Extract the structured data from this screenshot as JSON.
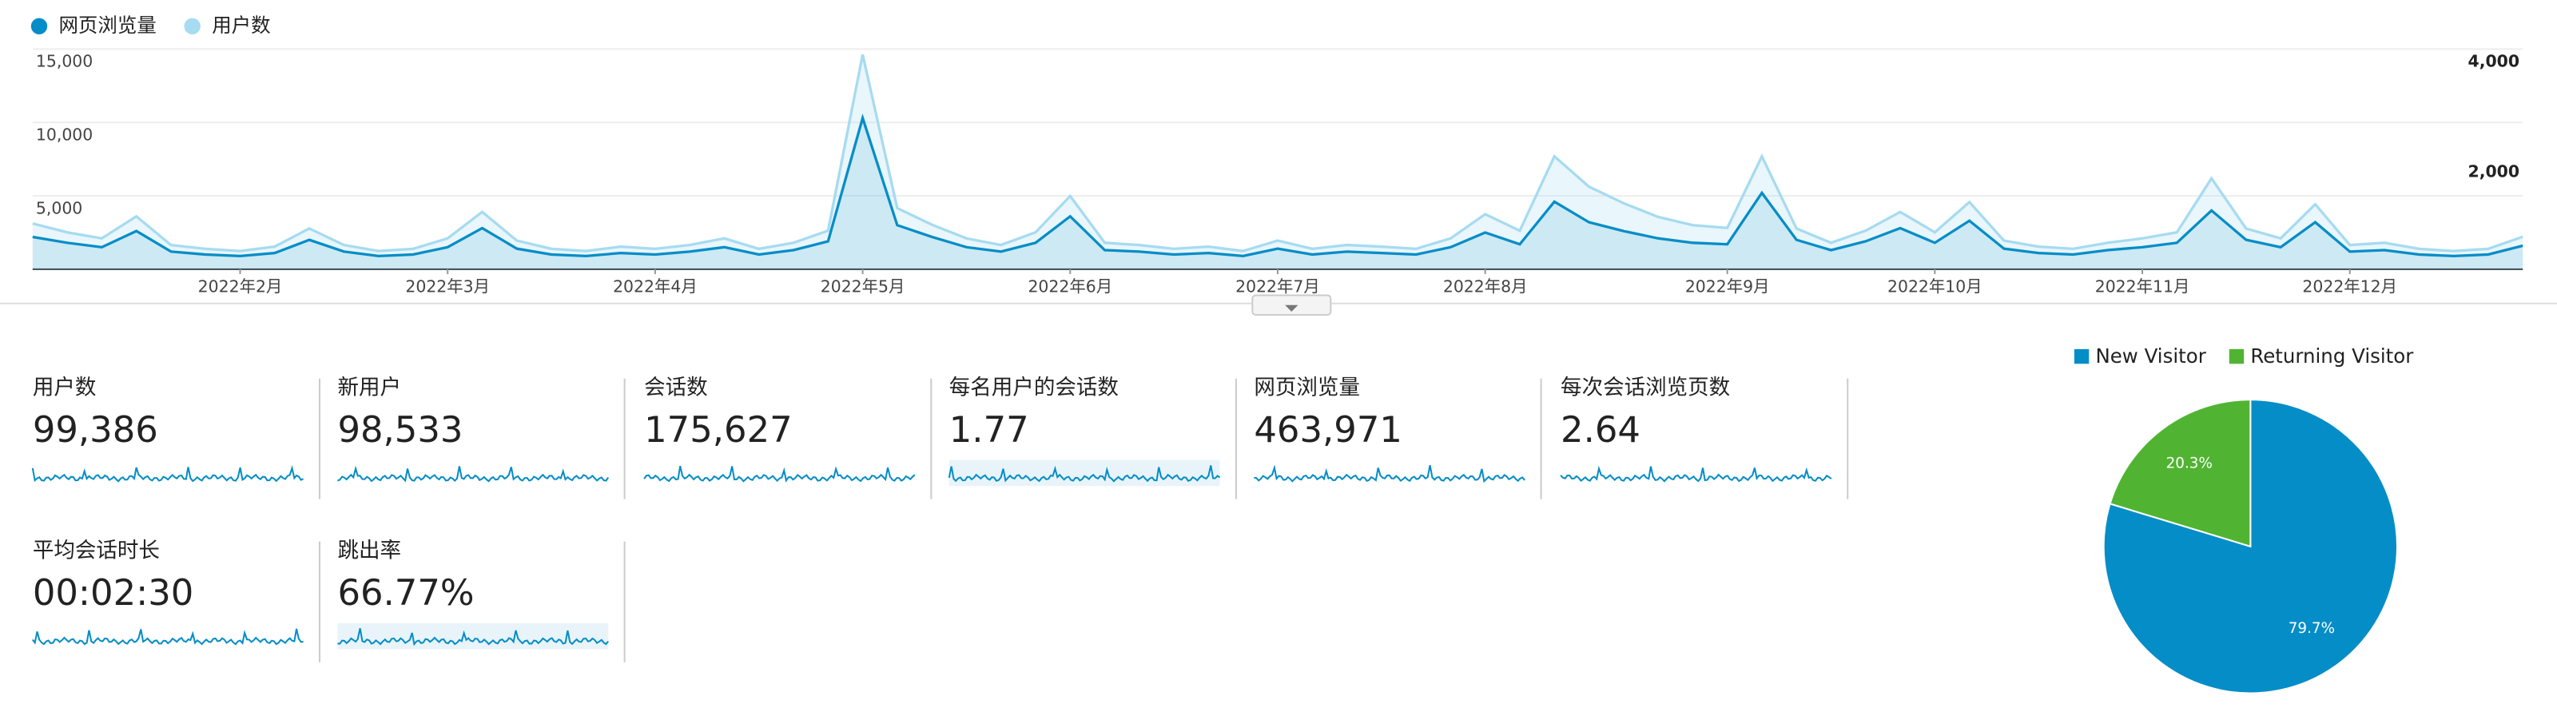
{
  "chart_data": [
    {
      "type": "line",
      "categories": [
        null,
        null,
        null,
        null,
        null,
        null,
        "2022年2月",
        null,
        null,
        null,
        null,
        null,
        "2022年3月",
        null,
        null,
        null,
        null,
        null,
        "2022年4月",
        null,
        null,
        null,
        null,
        null,
        "2022年5月",
        null,
        null,
        null,
        null,
        null,
        "2022年6月",
        null,
        null,
        null,
        null,
        null,
        "2022年7月",
        null,
        null,
        null,
        null,
        null,
        "2022年8月",
        null,
        null,
        null,
        null,
        null,
        null,
        "2022年9月",
        null,
        null,
        null,
        null,
        null,
        "2022年10月",
        null,
        null,
        null,
        null,
        null,
        "2022年11月",
        null,
        null,
        null,
        null,
        null,
        "2022年12月",
        null,
        null,
        null,
        null,
        null
      ],
      "series": [
        {
          "name": "网页浏览量",
          "color": "#058dc7",
          "values": [
            2200,
            1800,
            1500,
            2600,
            1200,
            1000,
            900,
            1100,
            2000,
            1200,
            900,
            1000,
            1500,
            2800,
            1400,
            1000,
            900,
            1100,
            1000,
            1200,
            1500,
            1000,
            1300,
            1900,
            10300,
            3000,
            2200,
            1500,
            1200,
            1800,
            3600,
            1300,
            1200,
            1000,
            1100,
            900,
            1400,
            1000,
            1200,
            1100,
            1000,
            1500,
            2500,
            1700,
            4600,
            3200,
            2600,
            2100,
            1800,
            1700,
            5200,
            2000,
            1300,
            1900,
            2800,
            1800,
            3300,
            1400,
            1100,
            1000,
            1300,
            1500,
            1800,
            4000,
            2000,
            1500,
            3200,
            1200,
            1300,
            1000,
            900,
            1000,
            1600
          ]
        },
        {
          "name": "用户数",
          "color": "#a6dbf0",
          "axis": "y2",
          "values": [
            830,
            670,
            560,
            960,
            440,
            370,
            330,
            410,
            740,
            440,
            330,
            370,
            560,
            1040,
            520,
            370,
            330,
            410,
            370,
            440,
            560,
            370,
            480,
            700,
            3900,
            1110,
            810,
            560,
            440,
            670,
            1330,
            480,
            440,
            370,
            410,
            330,
            520,
            370,
            440,
            410,
            370,
            560,
            1000,
            700,
            2050,
            1500,
            1200,
            950,
            800,
            750,
            2050,
            740,
            480,
            700,
            1040,
            670,
            1220,
            520,
            410,
            370,
            480,
            560,
            670,
            1650,
            740,
            560,
            1180,
            440,
            480,
            370,
            330,
            370,
            590
          ]
        }
      ],
      "ylim": [
        0,
        15000
      ],
      "yticks": [
        {
          "value": 5000,
          "label": "5,000"
        },
        {
          "value": 10000,
          "label": "10,000"
        },
        {
          "value": 15000,
          "label": "15,000"
        }
      ],
      "y2lim": [
        0,
        4000
      ],
      "y2ticks": [
        {
          "value": 2000,
          "label": "2,000"
        },
        {
          "value": 4000,
          "label": "4,000"
        }
      ],
      "grid": true,
      "legend": "top-left"
    },
    {
      "type": "pie",
      "categories": [
        "New Visitor",
        "Returning Visitor"
      ],
      "values": [
        79.7,
        20.3
      ],
      "value_labels": [
        "79.7%",
        "20.3%"
      ],
      "colors": [
        "#058dc7",
        "#50b432"
      ],
      "legend": "top"
    }
  ],
  "metrics": [
    {
      "label": "用户数",
      "value": "99,386"
    },
    {
      "label": "新用户",
      "value": "98,533"
    },
    {
      "label": "会话数",
      "value": "175,627"
    },
    {
      "label": "每名用户的会话数",
      "value": "1.77"
    },
    {
      "label": "网页浏览量",
      "value": "463,971"
    },
    {
      "label": "每次会话浏览页数",
      "value": "2.64"
    },
    {
      "label": "平均会话时长",
      "value": "00:02:30"
    },
    {
      "label": "跳出率",
      "value": "66.77%"
    }
  ]
}
